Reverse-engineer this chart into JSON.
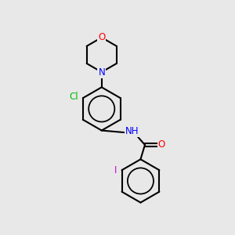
{
  "bg_color": "#e8e8e8",
  "bond_color": "#000000",
  "bond_width": 1.5,
  "colors": {
    "O": "#ff0000",
    "N": "#0000ff",
    "Cl": "#00bb00",
    "I": "#cc00cc"
  },
  "font_size": 8.5,
  "fig_size": [
    3.0,
    3.0
  ],
  "dpi": 100
}
